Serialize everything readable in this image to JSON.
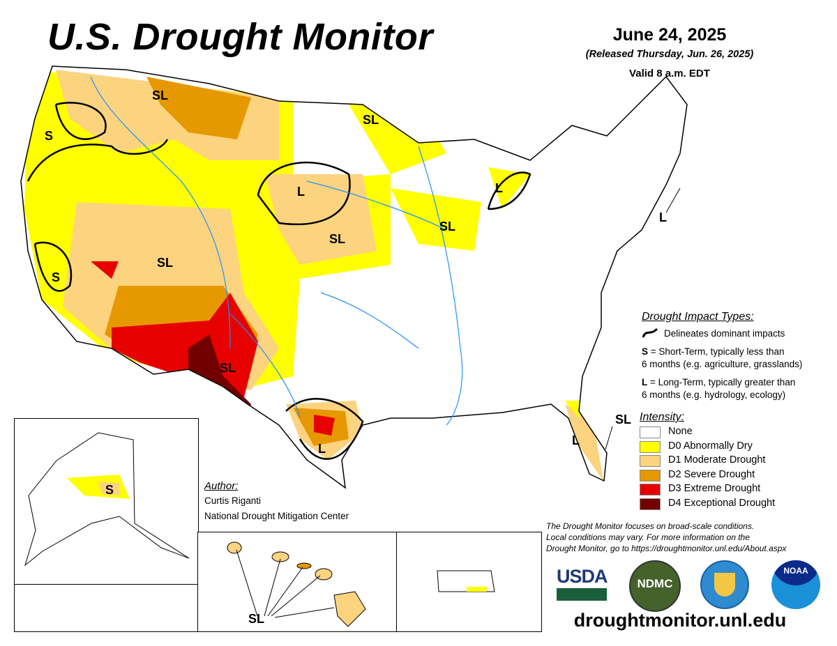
{
  "header": {
    "title": "U.S. Drought Monitor",
    "date": "June 24, 2025",
    "released": "(Released Thursday, Jun. 26, 2025)",
    "valid": "Valid 8 a.m. EDT"
  },
  "impact_legend": {
    "heading": "Drought Impact Types:",
    "delineates": "Delineates dominant impacts",
    "s_key": "S",
    "s_text": " = Short-Term, typically less than",
    "s_text2": "6 months (e.g. agriculture, grasslands)",
    "l_key": "L",
    "l_text": " = Long-Term, typically greater than",
    "l_text2": "6 months (e.g. hydrology, ecology)"
  },
  "intensity_legend": {
    "heading": "Intensity:",
    "items": [
      {
        "label": "None",
        "color": "#ffffff"
      },
      {
        "label": "D0 Abnormally Dry",
        "color": "#ffff00"
      },
      {
        "label": "D1 Moderate Drought",
        "color": "#fcd37f"
      },
      {
        "label": "D2 Severe Drought",
        "color": "#e69800"
      },
      {
        "label": "D3 Extreme Drought",
        "color": "#e60000"
      },
      {
        "label": "D4 Exceptional Drought",
        "color": "#730000"
      }
    ]
  },
  "author": {
    "heading": "Author:",
    "name": "Curtis Riganti",
    "org": "National Drought Mitigation Center"
  },
  "map_labels": {
    "s": "S",
    "l": "L",
    "sl": "SL"
  },
  "disclaimer": [
    "The Drought Monitor focuses on broad-scale conditions.",
    "Local conditions may vary. For more information on the",
    "Drought Monitor, go to https://droughtmonitor.unl.edu/About.aspx"
  ],
  "logos": [
    {
      "name": "USDA",
      "text": "USDA"
    },
    {
      "name": "NDMC",
      "text": "NDMC"
    },
    {
      "name": "Department of Commerce"
    },
    {
      "name": "NOAA",
      "text": "NOAA"
    }
  ],
  "url": "droughtmonitor.unl.edu"
}
